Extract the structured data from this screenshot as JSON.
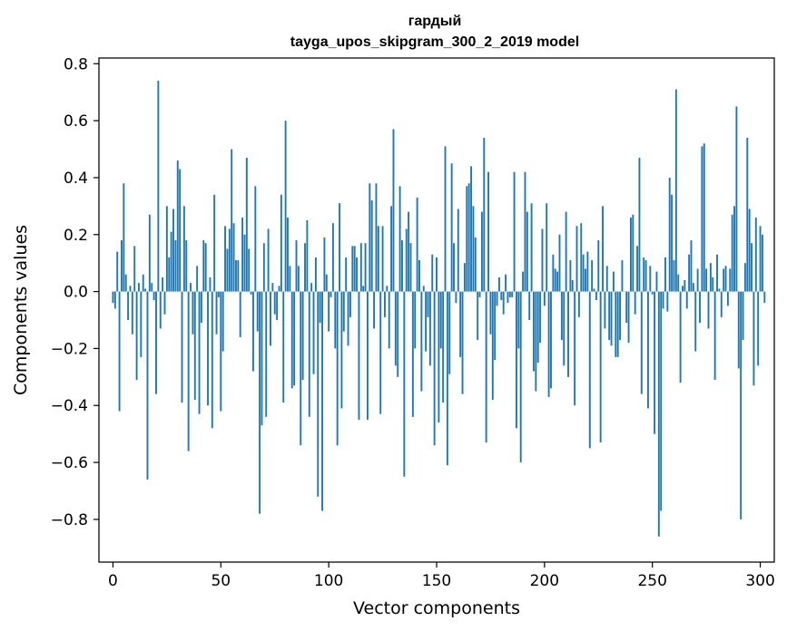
{
  "chart_data": {
    "type": "bar",
    "title": "гардый",
    "subtitle": "tayga_upos_skipgram_300_2_2019 model",
    "xlabel": "Vector components",
    "ylabel": "Components values",
    "xlim": [
      -6.5,
      306.5
    ],
    "ylim": [
      -0.95,
      0.82
    ],
    "xticks": [
      0,
      50,
      100,
      150,
      200,
      250,
      300
    ],
    "yticks": [
      -0.8,
      -0.6,
      -0.4,
      -0.2,
      0.0,
      0.2,
      0.4,
      0.6,
      0.8
    ],
    "xtick_labels": [
      "0",
      "50",
      "100",
      "150",
      "200",
      "250",
      "300"
    ],
    "ytick_labels": [
      "−0.8",
      "−0.6",
      "−0.4",
      "−0.2",
      "0.0",
      "0.2",
      "0.4",
      "0.6",
      "0.8"
    ],
    "bar_color": "#1f77b4",
    "values": [
      -0.04,
      -0.06,
      0.14,
      -0.42,
      0.18,
      0.38,
      0.06,
      -0.1,
      0.02,
      -0.15,
      0.16,
      -0.31,
      0.03,
      -0.23,
      0.06,
      0.01,
      -0.66,
      0.27,
      0.03,
      -0.03,
      -0.36,
      0.74,
      -0.13,
      0.05,
      -0.08,
      0.3,
      0.12,
      0.21,
      0.29,
      0.18,
      0.46,
      0.43,
      -0.39,
      0.3,
      0.18,
      -0.56,
      0.03,
      -0.15,
      -0.38,
      0.09,
      -0.43,
      -0.11,
      0.18,
      0.17,
      -0.4,
      0.05,
      -0.48,
      0.34,
      -0.15,
      -0.02,
      -0.42,
      -0.21,
      0.23,
      0.15,
      0.22,
      0.5,
      0.24,
      0.11,
      0.11,
      -0.16,
      0.26,
      0.2,
      0.47,
      0.15,
      -0.01,
      -0.28,
      0.37,
      -0.14,
      -0.78,
      -0.47,
      0.17,
      -0.44,
      0.22,
      -0.19,
      0.03,
      -0.08,
      -0.1,
      0.02,
      0.34,
      -0.39,
      0.6,
      0.26,
      0.09,
      -0.34,
      -0.33,
      0.18,
      0.09,
      -0.54,
      -0.31,
      0.17,
      0.25,
      -0.44,
      0.03,
      -0.29,
      0.12,
      -0.72,
      -0.11,
      -0.77,
      0.19,
      0.06,
      -0.14,
      -0.02,
      0.24,
      -0.2,
      -0.54,
      0.31,
      -0.41,
      -0.14,
      0.12,
      -0.19,
      -0.09,
      0.16,
      0.16,
      0.12,
      -0.45,
      0.17,
      0.02,
      0.17,
      -0.45,
      0.38,
      0.32,
      -0.13,
      0.38,
      0.23,
      -0.43,
      0.23,
      -0.09,
      0.02,
      -0.2,
      0.3,
      0.57,
      -0.26,
      -0.3,
      0.37,
      0.18,
      -0.65,
      0.22,
      0.28,
      0.17,
      -0.44,
      -0.2,
      0.33,
      0.11,
      -0.35,
      0.02,
      -0.21,
      -0.09,
      -0.26,
      0.13,
      -0.54,
      0.12,
      -0.46,
      -0.2,
      -0.39,
      0.51,
      -0.61,
      -0.29,
      0.45,
      0.17,
      -0.04,
      0.29,
      -0.23,
      -0.36,
      0.1,
      0.37,
      0.38,
      0.44,
      0.3,
      0.19,
      -0.17,
      -0.02,
      0.28,
      0.54,
      -0.53,
      0.42,
      -0.15,
      -0.38,
      -0.24,
      -0.05,
      0.05,
      -0.03,
      -0.08,
      0.06,
      -0.04,
      -0.02,
      -0.02,
      0.42,
      -0.48,
      -0.2,
      -0.6,
      0.07,
      0.42,
      0.28,
      -0.1,
      0.31,
      -0.28,
      -0.35,
      -0.25,
      -0.18,
      0.22,
      -0.05,
      0.31,
      -0.37,
      -0.34,
      0.13,
      0.08,
      0.07,
      0.2,
      -0.17,
      -0.26,
      0.28,
      -0.3,
      0.11,
      0.04,
      -0.4,
      0.23,
      -0.09,
      0.24,
      0.13,
      0.08,
      0.14,
      -0.55,
      0.11,
      0.01,
      -0.03,
      0.18,
      -0.53,
      0.3,
      -0.13,
      0.09,
      -0.17,
      -0.19,
      0.07,
      -0.23,
      -0.23,
      -0.17,
      0.11,
      0.0,
      -0.11,
      -0.18,
      0.26,
      0.27,
      -0.08,
      0.16,
      0.47,
      -0.36,
      0.12,
      0.11,
      -0.41,
      0.09,
      -0.01,
      -0.5,
      0.07,
      -0.86,
      -0.77,
      -0.06,
      0.12,
      -0.07,
      0.4,
      0.34,
      0.11,
      0.71,
      0.06,
      -0.32,
      0.02,
      0.04,
      -0.06,
      0.13,
      0.18,
      0.03,
      -0.21,
      0.08,
      -0.11,
      0.51,
      0.52,
      0.08,
      -0.13,
      0.1,
      0.05,
      -0.31,
      0.13,
      0.01,
      -0.09,
      0.08,
      0.09,
      -0.05,
      0.08,
      0.27,
      0.3,
      0.65,
      -0.27,
      -0.8,
      -0.17,
      0.1,
      0.54,
      0.29,
      0.17,
      -0.33,
      0.26,
      -0.26,
      0.23,
      0.2,
      -0.04
    ]
  }
}
